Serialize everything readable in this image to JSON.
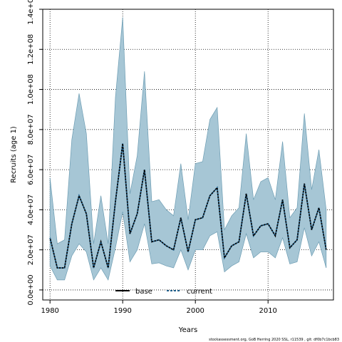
{
  "chart_data": {
    "type": "area",
    "xlabel": "Years",
    "ylabel": "Recruits (age 1)",
    "xlim": [
      1979,
      2019
    ],
    "ylim": [
      -5000000.0,
      140000000.0
    ],
    "x_ticks": [
      1980,
      1990,
      2000,
      2010
    ],
    "x_tick_labels": [
      "1980",
      "1990",
      "2000",
      "2010"
    ],
    "y_ticks": [
      0,
      20000000.0,
      40000000.0,
      60000000.0,
      80000000.0,
      100000000.0,
      120000000.0,
      140000000.0
    ],
    "y_tick_labels": [
      "0.0e+00",
      "2.0e+07",
      "4.0e+07",
      "6.0e+07",
      "8.0e+07",
      "1.0e+08",
      "1.2e+08",
      "1.4e+08"
    ],
    "grid": true,
    "legend_placement": "bottom-center",
    "x": [
      1980,
      1981,
      1982,
      1983,
      1984,
      1985,
      1986,
      1987,
      1988,
      1989,
      1990,
      1991,
      1992,
      1993,
      1994,
      1995,
      1996,
      1997,
      1998,
      1999,
      2000,
      2001,
      2002,
      2003,
      2004,
      2005,
      2006,
      2007,
      2008,
      2009,
      2010,
      2011,
      2012,
      2013,
      2014,
      2015,
      2016,
      2017,
      2018
    ],
    "series": [
      {
        "name": "base",
        "values": [
          26000000.0,
          11000000.0,
          11000000.0,
          33000000.0,
          47000000.0,
          38000000.0,
          11000000.0,
          24000000.0,
          11000000.0,
          44000000.0,
          73000000.0,
          28000000.0,
          38000000.0,
          60000000.0,
          24000000.0,
          25000000.0,
          22000000.0,
          20000000.0,
          36000000.0,
          19000000.0,
          35000000.0,
          36000000.0,
          47000000.0,
          51000000.0,
          16000000.0,
          22000000.0,
          24000000.0,
          48000000.0,
          27000000.0,
          32000000.0,
          33000000.0,
          27000000.0,
          45000000.0,
          21000000.0,
          25000000.0,
          53000000.0,
          30000000.0,
          41000000.0,
          20000000.0
        ]
      },
      {
        "name": "current",
        "values": [
          26000000.0,
          11000000.0,
          11000000.0,
          33000000.0,
          47000000.0,
          38000000.0,
          11000000.0,
          24000000.0,
          11000000.0,
          44000000.0,
          73000000.0,
          28000000.0,
          38000000.0,
          60000000.0,
          24000000.0,
          25000000.0,
          22000000.0,
          20000000.0,
          36000000.0,
          19000000.0,
          35000000.0,
          36000000.0,
          47000000.0,
          51000000.0,
          16000000.0,
          22000000.0,
          24000000.0,
          48000000.0,
          27000000.0,
          32000000.0,
          33000000.0,
          27000000.0,
          45000000.0,
          21000000.0,
          25000000.0,
          53000000.0,
          30000000.0,
          41000000.0,
          20000000.0
        ]
      }
    ],
    "interval": {
      "upper": [
        56000000.0,
        23000000.0,
        25000000.0,
        75000000.0,
        98000000.0,
        78000000.0,
        23000000.0,
        47000000.0,
        23000000.0,
        96000000.0,
        136000000.0,
        48000000.0,
        67000000.0,
        109000000.0,
        44000000.0,
        45000000.0,
        40000000.0,
        37000000.0,
        63000000.0,
        35000000.0,
        63000000.0,
        64000000.0,
        85000000.0,
        91000000.0,
        30000000.0,
        37000000.0,
        41000000.0,
        78000000.0,
        45000000.0,
        54000000.0,
        56000000.0,
        45000000.0,
        74000000.0,
        36000000.0,
        41000000.0,
        88000000.0,
        50000000.0,
        70000000.0,
        40000000.0
      ],
      "lower": [
        12000000.0,
        5000000.0,
        5000000.0,
        17000000.0,
        23000000.0,
        19000000.0,
        5000000.0,
        11000000.0,
        5000000.0,
        21000000.0,
        39000000.0,
        14000000.0,
        20000000.0,
        33000000.0,
        13000000.0,
        13500000.0,
        12000000.0,
        11000000.0,
        20000000.0,
        10000000.0,
        20000000.0,
        20000000.0,
        27000000.0,
        29000000.0,
        9000000.0,
        12000000.0,
        14000000.0,
        28000000.0,
        16000000.0,
        19000000.0,
        19000000.0,
        16000000.0,
        26000000.0,
        13000000.0,
        14000000.0,
        31000000.0,
        17000000.0,
        24000000.0,
        11000000.0
      ]
    },
    "colors": {
      "interval_fill": "#a6c6d5",
      "interval_stroke": "#6d9db3",
      "base_line": "#000000",
      "current_line": "#1f5f8b"
    }
  },
  "footer": "stockassessment.org, GoB Herring 2020 SSL, r11539 , git: df0b7c1bcb83"
}
